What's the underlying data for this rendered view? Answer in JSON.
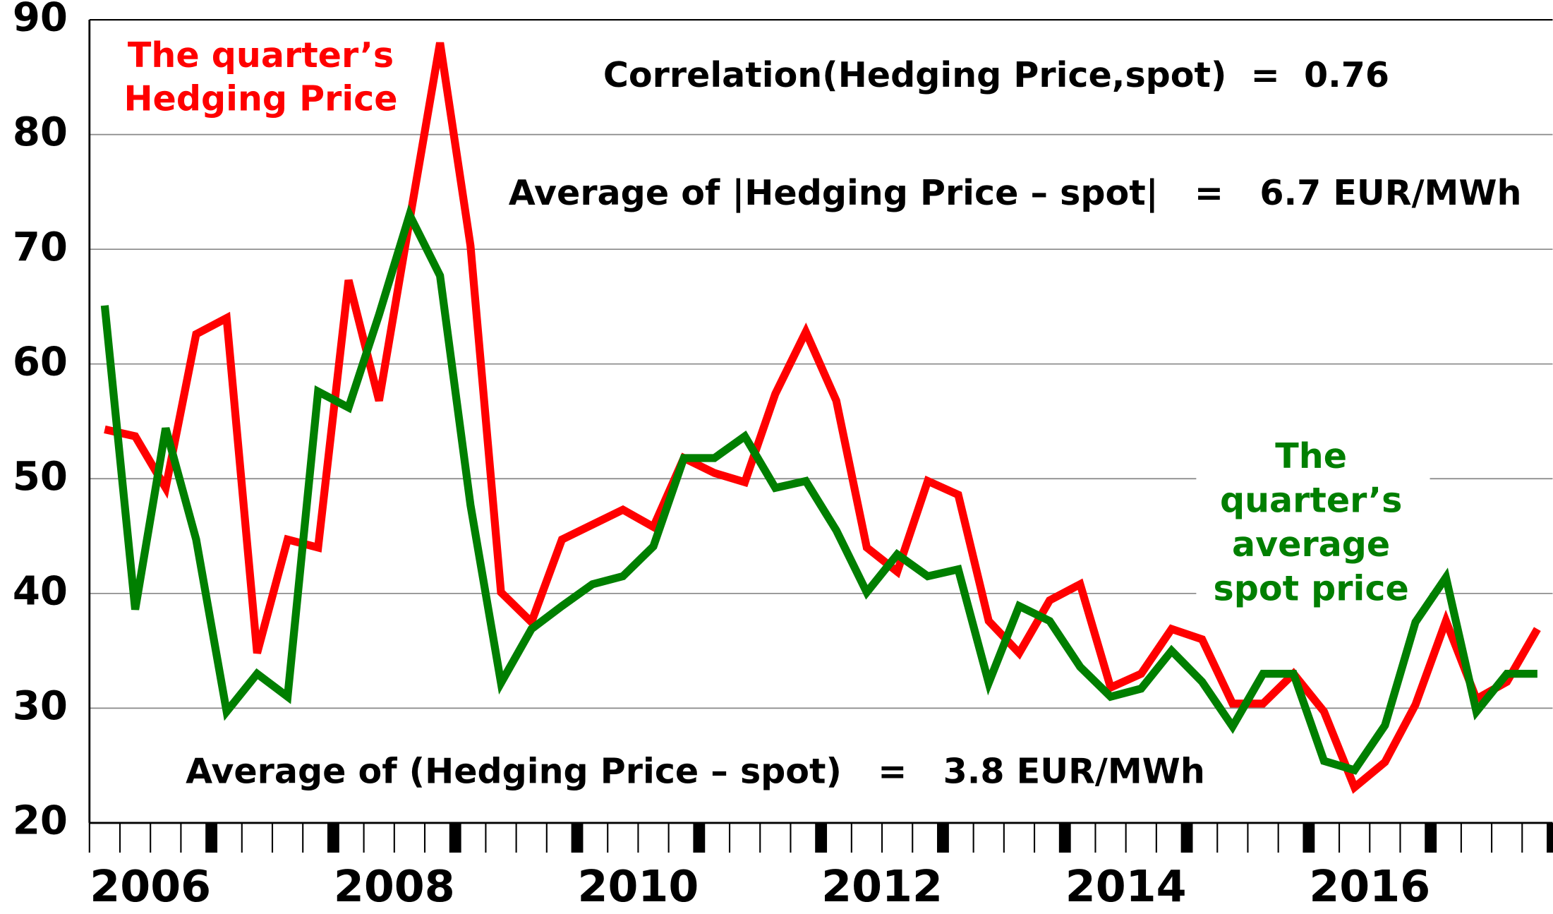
{
  "chart_data": {
    "type": "line",
    "x": [
      2006.125,
      2006.375,
      2006.625,
      2006.875,
      2007.125,
      2007.375,
      2007.625,
      2007.875,
      2008.125,
      2008.375,
      2008.625,
      2008.875,
      2009.125,
      2009.375,
      2009.625,
      2009.875,
      2010.125,
      2010.375,
      2010.625,
      2010.875,
      2011.125,
      2011.375,
      2011.625,
      2011.875,
      2012.125,
      2012.375,
      2012.625,
      2012.875,
      2013.125,
      2013.375,
      2013.625,
      2013.875,
      2014.125,
      2014.375,
      2014.625,
      2014.875,
      2015.125,
      2015.375,
      2015.625,
      2015.875,
      2016.125,
      2016.375,
      2016.625,
      2016.875,
      2017.125,
      2017.375,
      2017.625,
      2017.875
    ],
    "series": [
      {
        "name": [
          "The quarter’s",
          "Hedging Price"
        ],
        "color": "#ff0000",
        "values": [
          54.3,
          53.7,
          49.2,
          62.6,
          64.0,
          34.8,
          44.7,
          44.0,
          67.3,
          56.8,
          72.5,
          88.0,
          70.3,
          40.1,
          37.5,
          44.7,
          46.0,
          47.3,
          45.8,
          51.8,
          50.5,
          49.7,
          57.4,
          62.8,
          56.8,
          44.0,
          41.9,
          49.8,
          48.6,
          37.6,
          34.8,
          39.4,
          40.8,
          31.8,
          33.0,
          36.9,
          36.0,
          30.4,
          30.4,
          33.0,
          29.7,
          23.1,
          25.3,
          30.3,
          37.6,
          30.8,
          32.3,
          36.9
        ]
      },
      {
        "name": [
          "The",
          "quarter’s",
          "average",
          "spot price"
        ],
        "color": "#007f00",
        "values": [
          65.1,
          38.6,
          54.4,
          44.7,
          29.7,
          33.0,
          31.0,
          57.6,
          56.2,
          64.3,
          73.0,
          67.7,
          47.7,
          32.2,
          36.9,
          38.9,
          40.8,
          41.5,
          44.1,
          51.8,
          51.8,
          53.7,
          49.2,
          49.8,
          45.5,
          40.1,
          43.4,
          41.5,
          42.1,
          32.2,
          38.9,
          37.6,
          33.6,
          31.0,
          31.7,
          35.0,
          32.3,
          28.4,
          33.0,
          33.0,
          25.4,
          24.6,
          28.5,
          37.5,
          41.4,
          29.7,
          33.0,
          33.0
        ]
      }
    ],
    "annotations": [
      "Correlation(Hedging Price,spot)  =  0.76",
      "Average of |Hedging Price – spot|   =   6.7 EUR/MWh",
      "Average of (Hedging Price – spot)   =   3.8 EUR/MWh"
    ],
    "xlim": [
      2006,
      2018
    ],
    "xticks": [
      2006,
      2008,
      2010,
      2012,
      2014,
      2016
    ],
    "ylim": [
      20,
      90
    ],
    "yticks": [
      20,
      30,
      40,
      50,
      60,
      70,
      80,
      90
    ],
    "grid": true
  }
}
